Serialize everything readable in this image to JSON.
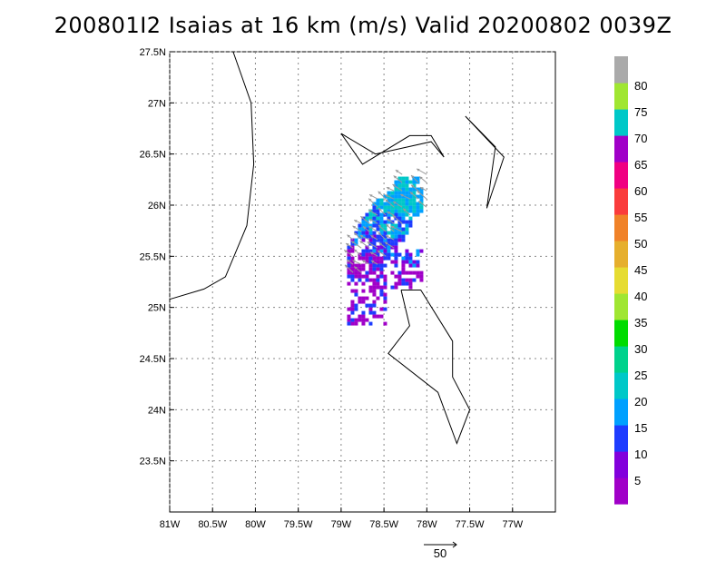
{
  "title": "200801I2 Isaias at 16 km (m/s) Valid 20200802 0039Z",
  "chart_data": {
    "type": "heatmap",
    "title": "200801I2 Isaias at 16 km (m/s) Valid 20200802 0039Z",
    "xlim": [
      -81.0,
      -76.5
    ],
    "ylim": [
      23.0,
      27.5
    ],
    "x_ticks": [
      {
        "value": -81.0,
        "label": "81W"
      },
      {
        "value": -80.5,
        "label": "80.5W"
      },
      {
        "value": -80.0,
        "label": "80W"
      },
      {
        "value": -79.5,
        "label": "79.5W"
      },
      {
        "value": -79.0,
        "label": "79W"
      },
      {
        "value": -78.5,
        "label": "78.5W"
      },
      {
        "value": -78.0,
        "label": "78W"
      },
      {
        "value": -77.5,
        "label": "77.5W"
      },
      {
        "value": -77.0,
        "label": "77W"
      }
    ],
    "y_ticks": [
      {
        "value": 27.5,
        "label": "27.5N"
      },
      {
        "value": 27.0,
        "label": "27N"
      },
      {
        "value": 26.5,
        "label": "26.5N"
      },
      {
        "value": 26.0,
        "label": "26N"
      },
      {
        "value": 25.5,
        "label": "25.5N"
      },
      {
        "value": 25.0,
        "label": "25N"
      },
      {
        "value": 24.5,
        "label": "24.5N"
      },
      {
        "value": 24.0,
        "label": "24N"
      },
      {
        "value": 23.5,
        "label": "23.5N"
      }
    ],
    "grid": true,
    "colorbar": {
      "colors": [
        "#a000c8",
        "#8200dc",
        "#1e3cff",
        "#00a0ff",
        "#00c8c8",
        "#00d28c",
        "#00dc00",
        "#a0e632",
        "#e6dc32",
        "#e6af2d",
        "#f08228",
        "#fa3c3c",
        "#f00082",
        "#a000c8",
        "#00c8c8",
        "#a0e632",
        "#aaaaaa"
      ],
      "labels": [
        "5",
        "10",
        "15",
        "20",
        "25",
        "30",
        "35",
        "40",
        "45",
        "50",
        "55",
        "60",
        "65",
        "70",
        "75",
        "80"
      ]
    },
    "coastlines": [
      [
        [
          -80.26,
          27.5
        ],
        [
          -80.05,
          27.0
        ],
        [
          -80.02,
          26.4
        ],
        [
          -80.1,
          25.8
        ],
        [
          -80.35,
          25.3
        ],
        [
          -80.6,
          25.18
        ],
        [
          -81.0,
          25.08
        ]
      ],
      [
        [
          -79.0,
          26.7
        ],
        [
          -78.75,
          26.4
        ],
        [
          -78.2,
          26.68
        ],
        [
          -77.95,
          26.68
        ],
        [
          -77.8,
          26.47
        ],
        [
          -77.95,
          26.62
        ],
        [
          -78.6,
          26.5
        ],
        [
          -79.0,
          26.7
        ]
      ],
      [
        [
          -77.55,
          26.87
        ],
        [
          -77.1,
          26.47
        ],
        [
          -77.3,
          25.97
        ],
        [
          -77.2,
          26.57
        ],
        [
          -77.55,
          26.87
        ]
      ],
      [
        [
          -78.3,
          25.17
        ],
        [
          -78.07,
          25.17
        ],
        [
          -77.7,
          24.67
        ],
        [
          -77.7,
          24.32
        ],
        [
          -77.5,
          24.0
        ],
        [
          -77.65,
          23.67
        ],
        [
          -77.87,
          24.17
        ],
        [
          -78.45,
          24.55
        ],
        [
          -78.2,
          24.82
        ],
        [
          -78.3,
          25.17
        ]
      ]
    ],
    "wind_vectors_region": {
      "lon": [
        -79.05,
        -77.95
      ],
      "lat": [
        25.15,
        26.3
      ]
    },
    "reference_vector": {
      "value": 50,
      "label": "50"
    }
  }
}
